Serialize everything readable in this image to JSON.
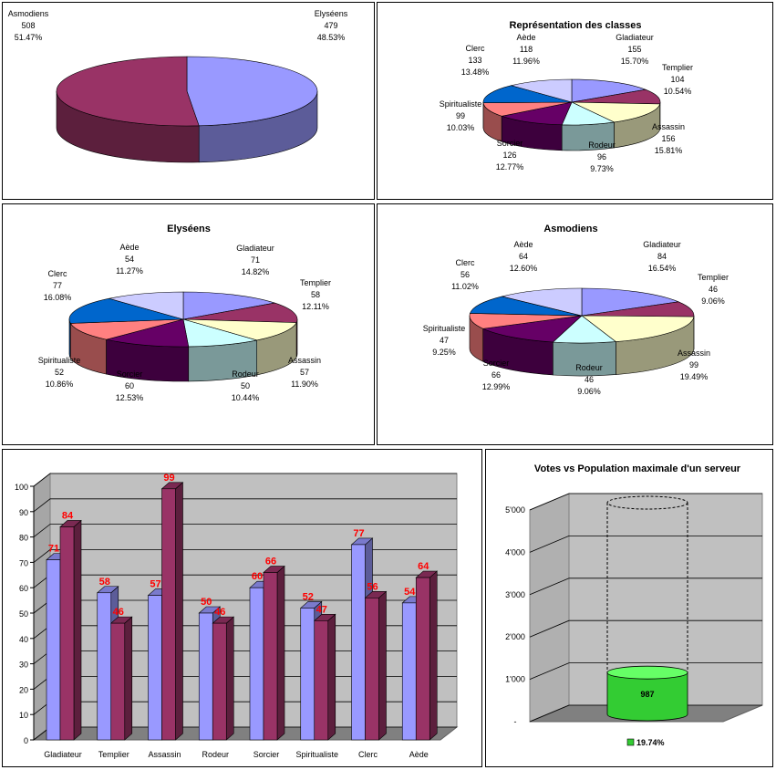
{
  "chart_data": [
    {
      "type": "pie",
      "title": "",
      "labels": [
        "Elyséens",
        "Asmodiens"
      ],
      "values": [
        479,
        508
      ],
      "percents": [
        "48.53%",
        "51.47%"
      ],
      "colors": [
        "#9999ff",
        "#993366"
      ]
    },
    {
      "type": "pie",
      "title": "Représentation des classes",
      "labels": [
        "Gladiateur",
        "Templier",
        "Assassin",
        "Rodeur",
        "Sorcier",
        "Spiritualiste",
        "Clerc",
        "Aède"
      ],
      "values": [
        155,
        104,
        156,
        96,
        126,
        99,
        133,
        118
      ],
      "percents": [
        "15.70%",
        "10.54%",
        "15.81%",
        "9.73%",
        "12.77%",
        "10.03%",
        "13.48%",
        "11.96%"
      ],
      "colors": [
        "#9999ff",
        "#993366",
        "#ffffcc",
        "#ccffff",
        "#660066",
        "#ff8080",
        "#0066cc",
        "#ccccff"
      ]
    },
    {
      "type": "pie",
      "title": "Elyséens",
      "labels": [
        "Gladiateur",
        "Templier",
        "Assassin",
        "Rodeur",
        "Sorcier",
        "Spiritualiste",
        "Clerc",
        "Aède"
      ],
      "values": [
        71,
        58,
        57,
        50,
        60,
        52,
        77,
        54
      ],
      "percents": [
        "14.82%",
        "12.11%",
        "11.90%",
        "10.44%",
        "12.53%",
        "10.86%",
        "16.08%",
        "11.27%"
      ],
      "colors": [
        "#9999ff",
        "#993366",
        "#ffffcc",
        "#ccffff",
        "#660066",
        "#ff8080",
        "#0066cc",
        "#ccccff"
      ]
    },
    {
      "type": "pie",
      "title": "Asmodiens",
      "labels": [
        "Gladiateur",
        "Templier",
        "Assassin",
        "Rodeur",
        "Sorcier",
        "Spiritualiste",
        "Clerc",
        "Aède"
      ],
      "values": [
        84,
        46,
        99,
        46,
        66,
        47,
        56,
        64
      ],
      "percents": [
        "16.54%",
        "9.06%",
        "19.49%",
        "9.06%",
        "12.99%",
        "9.25%",
        "11.02%",
        "12.60%"
      ],
      "colors": [
        "#9999ff",
        "#993366",
        "#ffffcc",
        "#ccffff",
        "#660066",
        "#ff8080",
        "#0066cc",
        "#ccccff"
      ]
    },
    {
      "type": "bar",
      "title": "",
      "categories": [
        "Gladiateur",
        "Templier",
        "Assassin",
        "Rodeur",
        "Sorcier",
        "Spiritualiste",
        "Clerc",
        "Aède"
      ],
      "series": [
        {
          "values": [
            71,
            58,
            57,
            50,
            60,
            52,
            77,
            54
          ],
          "color": "#9999ff"
        },
        {
          "values": [
            84,
            46,
            99,
            46,
            66,
            47,
            56,
            64
          ],
          "color": "#993366"
        }
      ],
      "ylim": [
        0,
        100
      ],
      "yticks": [
        "0",
        "10",
        "20",
        "30",
        "40",
        "50",
        "60",
        "70",
        "80",
        "90",
        "100"
      ],
      "data_label_color": "#ff0000",
      "grid": true
    },
    {
      "type": "bar",
      "title": "Votes vs Population maximale d'un serveur",
      "value": 987,
      "value_label": "987",
      "max": 5000,
      "yticks": [
        "-",
        "1'000",
        "2'000",
        "3'000",
        "4'000",
        "5'000"
      ],
      "legend": "19.74%",
      "color": "#33cc33",
      "grid": true
    }
  ]
}
